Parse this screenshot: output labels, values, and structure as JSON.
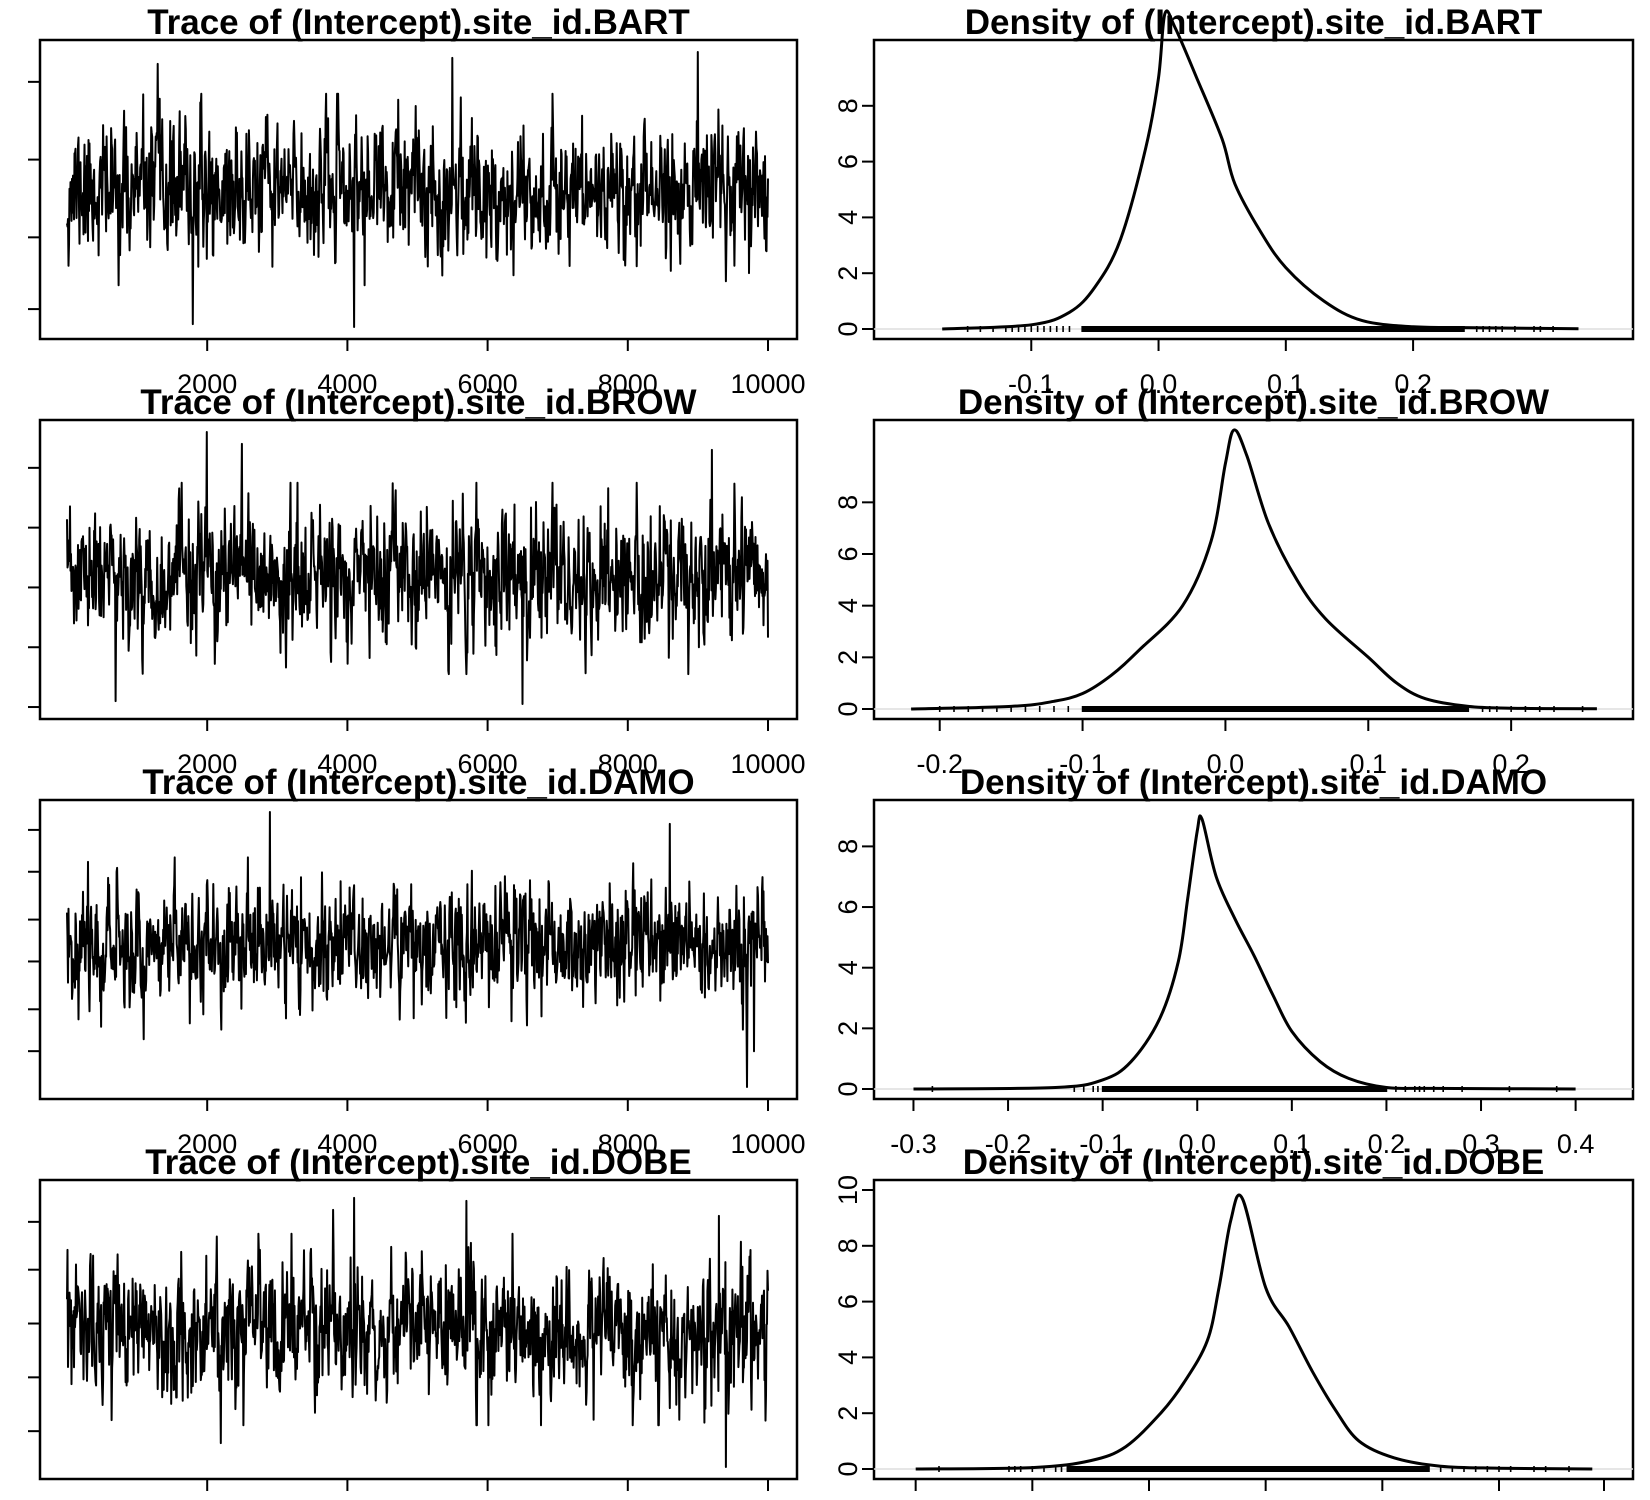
{
  "chart_data": [
    {
      "type": "line",
      "panel": "trace",
      "title": "Trace of (Intercept).site_id.BART",
      "xlabel": "",
      "ylabel": "",
      "xlim": [
        0,
        10000
      ],
      "ylim": [
        0,
        1
      ],
      "x_ticks": [
        2000,
        4000,
        6000,
        8000,
        10000
      ],
      "x_tick_labels": [
        "2000",
        "4000",
        "6000",
        "8000",
        "10000"
      ],
      "y_ticks": [
        0.1,
        0.34,
        0.6,
        0.86
      ],
      "y_tick_labels": [],
      "series": [
        {
          "seed": 11,
          "center": 0.5,
          "spread": 0.1,
          "lowest": 0.04,
          "highest": 0.96,
          "low_spikes": [
            [
              0.41,
              0.04
            ],
            [
              0.18,
              0.05
            ]
          ],
          "high_spikes": [
            [
              0.9,
              0.96
            ],
            [
              0.13,
              0.92
            ],
            [
              0.55,
              0.94
            ]
          ]
        }
      ],
      "grid": false,
      "legend": "none"
    },
    {
      "type": "line",
      "panel": "density",
      "title": "Density of (Intercept).site_id.BART",
      "xlabel": "",
      "ylabel": "",
      "xlim": [
        -0.2,
        0.35
      ],
      "ylim": [
        0,
        10
      ],
      "x_ticks": [
        -0.1,
        0.0,
        0.1,
        0.2
      ],
      "x_tick_labels": [
        "-0.1",
        "0.0",
        "0.1",
        "0.2"
      ],
      "y_ticks": [
        0,
        2,
        4,
        6,
        8
      ],
      "y_tick_labels": [
        "0",
        "2",
        "4",
        "6",
        "8"
      ],
      "curve": {
        "x": [
          -0.17,
          -0.1,
          -0.07,
          -0.05,
          -0.03,
          -0.01,
          0.0,
          0.005,
          0.013,
          0.03,
          0.05,
          0.06,
          0.08,
          0.1,
          0.13,
          0.16,
          0.2,
          0.24,
          0.3,
          0.33
        ],
        "y": [
          0.0,
          0.15,
          0.6,
          1.5,
          3.2,
          6.5,
          9.0,
          11.3,
          10.8,
          9.0,
          6.8,
          5.2,
          3.5,
          2.2,
          1.0,
          0.3,
          0.08,
          0.05,
          0.02,
          0.01
        ]
      },
      "rug": {
        "dense": [
          -0.06,
          0.24
        ],
        "sparse": [
          -0.15,
          -0.14,
          -0.13,
          -0.12,
          -0.115,
          -0.11,
          -0.105,
          -0.1,
          -0.095,
          -0.09,
          -0.085,
          -0.08,
          -0.075,
          -0.07,
          0.25,
          0.255,
          0.26,
          0.265,
          0.27,
          0.28,
          0.295,
          0.3,
          0.31
        ]
      },
      "grid": false,
      "legend": "none"
    },
    {
      "type": "line",
      "panel": "trace",
      "title": "Trace of (Intercept).site_id.BROW",
      "xlabel": "",
      "ylabel": "",
      "xlim": [
        0,
        10000
      ],
      "ylim": [
        0,
        1
      ],
      "x_ticks": [
        2000,
        4000,
        6000,
        8000,
        10000
      ],
      "x_tick_labels": [
        "2000",
        "4000",
        "6000",
        "8000",
        "10000"
      ],
      "y_ticks": [
        0.04,
        0.24,
        0.44,
        0.64,
        0.84
      ],
      "y_tick_labels": [],
      "series": [
        {
          "seed": 23,
          "center": 0.47,
          "spread": 0.1,
          "lowest": 0.04,
          "highest": 0.96,
          "low_spikes": [
            [
              0.25,
              0.04
            ],
            [
              0.65,
              0.05
            ],
            [
              0.07,
              0.06
            ]
          ],
          "high_spikes": [
            [
              0.2,
              0.96
            ],
            [
              0.25,
              0.92
            ],
            [
              0.92,
              0.9
            ]
          ]
        }
      ],
      "grid": false,
      "legend": "none"
    },
    {
      "type": "line",
      "panel": "density",
      "title": "Density of (Intercept).site_id.BROW",
      "xlabel": "",
      "ylabel": "",
      "xlim": [
        -0.225,
        0.265
      ],
      "ylim": [
        0,
        10.8
      ],
      "x_ticks": [
        -0.2,
        -0.1,
        0.0,
        0.1,
        0.2
      ],
      "x_tick_labels": [
        "-0.2",
        "-0.1",
        "0.0",
        "0.1",
        "0.2"
      ],
      "y_ticks": [
        0,
        2,
        4,
        6,
        8
      ],
      "y_tick_labels": [
        "0",
        "2",
        "4",
        "6",
        "8"
      ],
      "curve": {
        "x": [
          -0.22,
          -0.15,
          -0.12,
          -0.1,
          -0.08,
          -0.06,
          -0.03,
          -0.01,
          0.0,
          0.006,
          0.015,
          0.03,
          0.05,
          0.07,
          0.1,
          0.12,
          0.14,
          0.17,
          0.2,
          0.26
        ],
        "y": [
          0.0,
          0.1,
          0.3,
          0.6,
          1.3,
          2.3,
          4.0,
          6.5,
          9.5,
          10.8,
          9.8,
          7.2,
          5.0,
          3.5,
          2.0,
          1.0,
          0.4,
          0.1,
          0.03,
          0.01
        ]
      },
      "rug": {
        "dense": [
          -0.1,
          0.17
        ],
        "sparse": [
          -0.2,
          -0.19,
          -0.18,
          -0.17,
          -0.16,
          -0.15,
          -0.14,
          -0.13,
          -0.12,
          -0.11,
          0.18,
          0.185,
          0.19,
          0.2,
          0.21,
          0.22,
          0.23,
          0.25
        ]
      },
      "grid": false,
      "legend": "none"
    },
    {
      "type": "line",
      "panel": "trace",
      "title": "Trace of (Intercept).site_id.DAMO",
      "xlabel": "",
      "ylabel": "",
      "xlim": [
        0,
        10000
      ],
      "ylim": [
        0,
        1
      ],
      "x_ticks": [
        2000,
        4000,
        6000,
        8000,
        10000
      ],
      "x_tick_labels": [
        "2000",
        "4000",
        "6000",
        "8000",
        "10000"
      ],
      "y_ticks": [
        0.16,
        0.3,
        0.46,
        0.6,
        0.76,
        0.9
      ],
      "y_tick_labels": [],
      "series": [
        {
          "seed": 37,
          "center": 0.52,
          "spread": 0.09,
          "lowest": 0.04,
          "highest": 0.96,
          "low_spikes": [
            [
              0.97,
              0.04
            ],
            [
              0.11,
              0.2
            ],
            [
              0.98,
              0.16
            ]
          ],
          "high_spikes": [
            [
              0.29,
              0.96
            ],
            [
              0.86,
              0.92
            ]
          ]
        }
      ],
      "grid": false,
      "legend": "none"
    },
    {
      "type": "line",
      "panel": "density",
      "title": "Density of (Intercept).site_id.DAMO",
      "xlabel": "",
      "ylabel": "",
      "xlim": [
        -0.31,
        0.43
      ],
      "ylim": [
        0,
        9.2
      ],
      "x_ticks": [
        -0.3,
        -0.2,
        -0.1,
        0.0,
        0.1,
        0.2,
        0.3,
        0.4
      ],
      "x_tick_labels": [
        "-0.3",
        "-0.2",
        "-0.1",
        "0.0",
        "0.1",
        "0.2",
        "0.3",
        "0.4"
      ],
      "y_ticks": [
        0,
        2,
        4,
        6,
        8
      ],
      "y_tick_labels": [
        "0",
        "2",
        "4",
        "6",
        "8"
      ],
      "curve": {
        "x": [
          -0.3,
          -0.15,
          -0.1,
          -0.07,
          -0.04,
          -0.02,
          -0.01,
          0.0,
          0.005,
          0.02,
          0.04,
          0.06,
          0.08,
          0.1,
          0.13,
          0.16,
          0.2,
          0.25,
          0.4
        ],
        "y": [
          0.0,
          0.05,
          0.3,
          0.9,
          2.3,
          4.2,
          6.3,
          8.5,
          8.9,
          7.0,
          5.6,
          4.4,
          3.1,
          1.9,
          0.9,
          0.35,
          0.05,
          0.02,
          0.0
        ]
      },
      "rug": {
        "dense": [
          -0.1,
          0.2
        ],
        "sparse": [
          -0.28,
          -0.13,
          -0.12,
          -0.11,
          -0.105,
          0.21,
          0.22,
          0.23,
          0.235,
          0.24,
          0.25,
          0.26,
          0.28,
          0.33,
          0.38
        ]
      },
      "grid": false,
      "legend": "none"
    },
    {
      "type": "line",
      "panel": "trace",
      "title": "Trace of (Intercept).site_id.DOBE",
      "xlabel": "",
      "ylabel": "",
      "xlim": [
        0,
        10000
      ],
      "ylim": [
        0,
        1
      ],
      "x_ticks": [
        2000,
        4000,
        6000,
        8000,
        10000
      ],
      "x_tick_labels": [
        "",
        "",
        "",
        "",
        ""
      ],
      "y_ticks": [
        0.16,
        0.34,
        0.52,
        0.7,
        0.86
      ],
      "y_tick_labels": [],
      "series": [
        {
          "seed": 53,
          "center": 0.5,
          "spread": 0.1,
          "lowest": 0.04,
          "highest": 0.96,
          "low_spikes": [
            [
              0.94,
              0.04
            ],
            [
              0.22,
              0.12
            ]
          ],
          "high_spikes": [
            [
              0.41,
              0.94
            ],
            [
              0.57,
              0.93
            ],
            [
              0.38,
              0.9
            ],
            [
              0.93,
              0.88
            ]
          ]
        }
      ],
      "grid": false,
      "legend": "none"
    },
    {
      "type": "line",
      "panel": "density",
      "title": "Density of (Intercept).site_id.DOBE",
      "xlabel": "",
      "ylabel": "",
      "xlim": [
        -0.26,
        0.34
      ],
      "ylim": [
        0,
        10
      ],
      "x_ticks": [
        -0.25,
        -0.15,
        -0.05,
        0.05,
        0.15,
        0.25,
        0.34
      ],
      "x_tick_labels": [
        "",
        "",
        "",
        "",
        "",
        "",
        ""
      ],
      "y_ticks": [
        0,
        2,
        4,
        6,
        8,
        10
      ],
      "y_tick_labels": [
        "0",
        "2",
        "4",
        "6",
        "8",
        "10"
      ],
      "curve": {
        "x": [
          -0.25,
          -0.15,
          -0.1,
          -0.07,
          -0.04,
          -0.02,
          0.0,
          0.01,
          0.02,
          0.03,
          0.05,
          0.07,
          0.09,
          0.11,
          0.13,
          0.16,
          0.2,
          0.25,
          0.33
        ],
        "y": [
          0.0,
          0.05,
          0.3,
          0.8,
          2.0,
          3.1,
          4.6,
          6.5,
          8.9,
          9.7,
          6.5,
          5.1,
          3.5,
          2.1,
          1.0,
          0.4,
          0.1,
          0.03,
          0.0
        ]
      },
      "rug": {
        "dense": [
          -0.12,
          0.19
        ],
        "sparse": [
          -0.23,
          -0.17,
          -0.165,
          -0.16,
          -0.15,
          -0.14,
          -0.13,
          -0.125,
          0.2,
          0.21,
          0.22,
          0.23,
          0.24,
          0.25,
          0.26,
          0.28,
          0.29,
          0.31
        ]
      },
      "grid": false,
      "legend": "none"
    }
  ]
}
